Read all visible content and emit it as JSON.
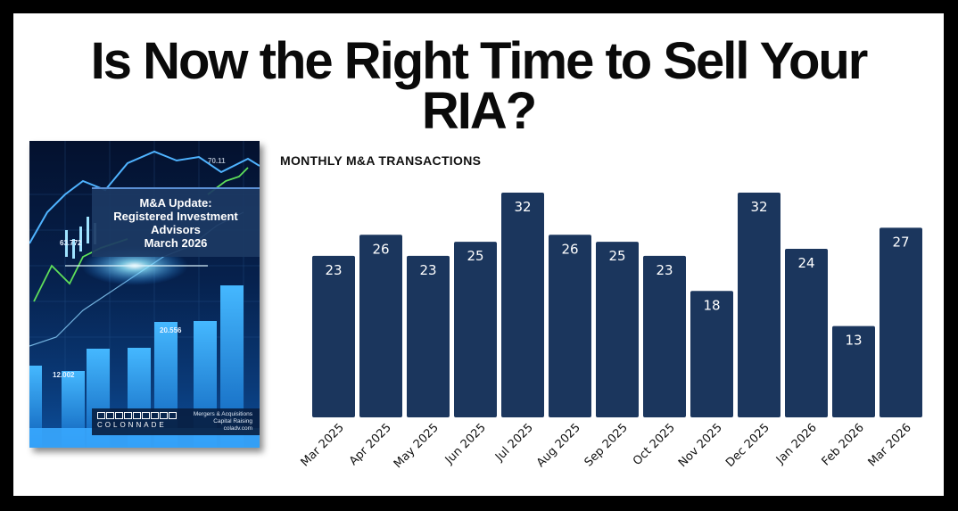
{
  "headline": {
    "line1": "Is Now the Right Time to Sell Your",
    "line2": "RIA?"
  },
  "cover": {
    "title_lines": [
      "M&A Update:",
      "Registered Investment",
      "Advisors",
      "March 2026"
    ],
    "stats": [
      "63.772",
      "20.556",
      "12.002",
      "70.11"
    ],
    "logo_text": "COLONNADE",
    "contact_lines": [
      "Mergers & Acquisitions",
      "Capital Raising",
      "coladv.com"
    ],
    "colors": {
      "background": "#06214d",
      "glow": "#5fd0ff",
      "line_green": "#5fe05a"
    }
  },
  "chart_data": {
    "type": "bar",
    "title": "MONTHLY M&A TRANSACTIONS",
    "xlabel": "",
    "ylabel": "",
    "categories": [
      "Mar 2025",
      "Apr 2025",
      "May 2025",
      "Jun 2025",
      "Jul 2025",
      "Aug 2025",
      "Sep 2025",
      "Oct 2025",
      "Nov 2025",
      "Dec 2025",
      "Jan 2026",
      "Feb 2026",
      "Mar 2026"
    ],
    "values": [
      23,
      26,
      23,
      25,
      32,
      26,
      25,
      23,
      18,
      32,
      24,
      13,
      27
    ],
    "ylim": [
      0,
      32
    ],
    "grid": false,
    "legend": "none",
    "bar_color": "#1b365d",
    "label_color": "#ffffff"
  }
}
